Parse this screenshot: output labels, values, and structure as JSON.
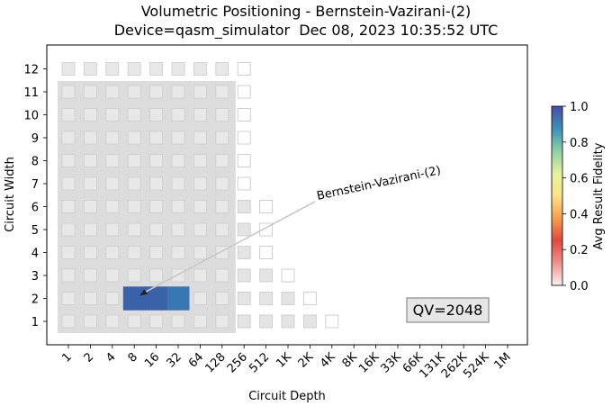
{
  "chart_data": {
    "type": "heatmap",
    "title": "Volumetric Positioning - Bernstein-Vazirani-(2)",
    "subtitle": "Device=qasm_simulator  Dec 08, 2023 10:35:52 UTC",
    "xlabel": "Circuit Depth",
    "ylabel": "Circuit Width",
    "x_tick_labels": [
      "1",
      "2",
      "4",
      "8",
      "16",
      "32",
      "64",
      "128",
      "256",
      "512",
      "1K",
      "2K",
      "4K",
      "8K",
      "16K",
      "33K",
      "66K",
      "131K",
      "262K",
      "524K",
      "1M"
    ],
    "y_tick_labels": [
      "1",
      "2",
      "3",
      "4",
      "5",
      "6",
      "7",
      "8",
      "9",
      "10",
      "11",
      "12"
    ],
    "x_scale": "log2",
    "grid": false,
    "volumetric_background": {
      "qv_label": "QV=2048",
      "quantum_volume_region": {
        "max_depth": 128,
        "max_width": 11
      },
      "capacity_max_depth_by_width": {
        "1": 4096,
        "2": 2048,
        "3": 1024,
        "4": 512,
        "5": 512,
        "6": 512,
        "7": 256,
        "8": 256,
        "9": 256,
        "10": 256,
        "11": 256,
        "12": 256
      }
    },
    "data_points": [
      {
        "width": 2,
        "depth": 8,
        "fidelity": 1.0
      },
      {
        "width": 2,
        "depth": 16,
        "fidelity": 1.0
      },
      {
        "width": 2,
        "depth": 32,
        "fidelity": 1.0
      }
    ],
    "annotation": {
      "text": "Bernstein-Vazirani-(2)",
      "points_to": {
        "width": 2,
        "depth": 8
      }
    },
    "colorbar": {
      "label": "Avg Result Fidelity",
      "range": [
        0.0,
        1.0
      ],
      "ticks": [
        "0.0",
        "0.2",
        "0.4",
        "0.6",
        "0.8",
        "1.0"
      ]
    }
  }
}
